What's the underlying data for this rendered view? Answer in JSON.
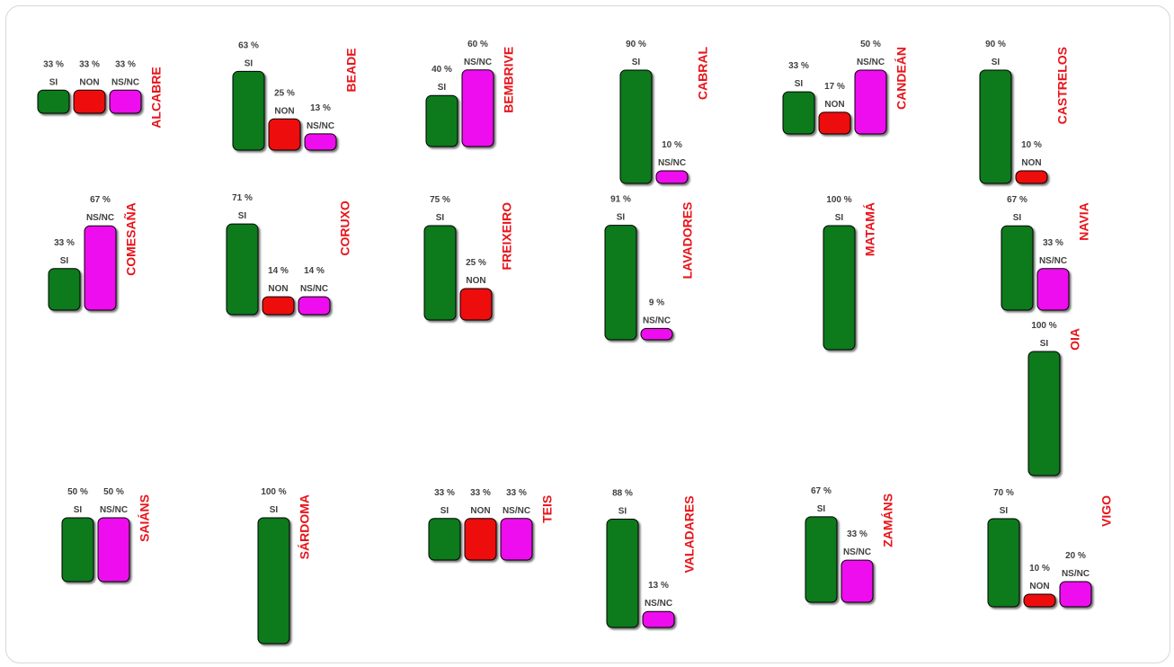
{
  "chart_data": {
    "type": "bar",
    "title": "",
    "colors": {
      "SI": "#0a7a1e",
      "NON": "#ee0b0b",
      "NS/NC": "#ee11ee"
    },
    "panels": [
      {
        "name": "ALCABRE",
        "bars": [
          {
            "cat": "SI",
            "value": 33,
            "label": "33 %"
          },
          {
            "cat": "NON",
            "value": 33,
            "label": "33 %"
          },
          {
            "cat": "NS/NC",
            "value": 33,
            "label": "33 %"
          }
        ]
      },
      {
        "name": "BEADE",
        "bars": [
          {
            "cat": "SI",
            "value": 63,
            "label": "63 %"
          },
          {
            "cat": "NON",
            "value": 25,
            "label": "25 %"
          },
          {
            "cat": "NS/NC",
            "value": 13,
            "label": "13 %"
          }
        ]
      },
      {
        "name": "BEMBRIVE",
        "bars": [
          {
            "cat": "SI",
            "value": 40,
            "label": "40 %"
          },
          {
            "cat": "NS/NC",
            "value": 60,
            "label": "60 %"
          }
        ]
      },
      {
        "name": "CABRAL",
        "bars": [
          {
            "cat": "SI",
            "value": 90,
            "label": "90 %"
          },
          {
            "cat": "NS/NC",
            "value": 10,
            "label": "10 %"
          }
        ]
      },
      {
        "name": "CANDEÁN",
        "bars": [
          {
            "cat": "SI",
            "value": 33,
            "label": "33 %"
          },
          {
            "cat": "NON",
            "value": 17,
            "label": "17 %"
          },
          {
            "cat": "NS/NC",
            "value": 50,
            "label": "50 %"
          }
        ]
      },
      {
        "name": "CASTRELOS",
        "bars": [
          {
            "cat": "SI",
            "value": 90,
            "label": "90 %"
          },
          {
            "cat": "NON",
            "value": 10,
            "label": "10 %"
          }
        ]
      },
      {
        "name": "COMESAÑA",
        "bars": [
          {
            "cat": "SI",
            "value": 33,
            "label": "33 %"
          },
          {
            "cat": "NS/NC",
            "value": 67,
            "label": "67 %"
          }
        ]
      },
      {
        "name": "CORUXO",
        "bars": [
          {
            "cat": "SI",
            "value": 71,
            "label": "71 %"
          },
          {
            "cat": "NON",
            "value": 14,
            "label": "14 %"
          },
          {
            "cat": "NS/NC",
            "value": 14,
            "label": "14 %"
          }
        ]
      },
      {
        "name": "FREIXEIRO",
        "bars": [
          {
            "cat": "SI",
            "value": 75,
            "label": "75 %"
          },
          {
            "cat": "NON",
            "value": 25,
            "label": "25 %"
          }
        ]
      },
      {
        "name": "LAVADORES",
        "bars": [
          {
            "cat": "SI",
            "value": 91,
            "label": "91 %"
          },
          {
            "cat": "NS/NC",
            "value": 9,
            "label": "9 %"
          }
        ]
      },
      {
        "name": "MATAMÁ",
        "bars": [
          {
            "cat": "SI",
            "value": 100,
            "label": "100 %"
          }
        ]
      },
      {
        "name": "NAVIA",
        "bars": [
          {
            "cat": "SI",
            "value": 67,
            "label": "67 %"
          },
          {
            "cat": "NS/NC",
            "value": 33,
            "label": "33 %"
          }
        ]
      },
      {
        "name": "OIA",
        "bars": [
          {
            "cat": "SI",
            "value": 100,
            "label": "100 %"
          }
        ]
      },
      {
        "name": "SAIÁNS",
        "bars": [
          {
            "cat": "SI",
            "value": 50,
            "label": "50 %"
          },
          {
            "cat": "NS/NC",
            "value": 50,
            "label": "50 %"
          }
        ]
      },
      {
        "name": "SÁRDOMA",
        "bars": [
          {
            "cat": "SI",
            "value": 100,
            "label": "100 %"
          }
        ]
      },
      {
        "name": "TEIS",
        "bars": [
          {
            "cat": "SI",
            "value": 33,
            "label": "33 %"
          },
          {
            "cat": "NON",
            "value": 33,
            "label": "33 %"
          },
          {
            "cat": "NS/NC",
            "value": 33,
            "label": "33 %"
          }
        ]
      },
      {
        "name": "VALADARES",
        "bars": [
          {
            "cat": "SI",
            "value": 88,
            "label": "88 %"
          },
          {
            "cat": "NS/NC",
            "value": 13,
            "label": "13 %"
          }
        ]
      },
      {
        "name": "ZAMÁNS",
        "bars": [
          {
            "cat": "SI",
            "value": 67,
            "label": "67 %"
          },
          {
            "cat": "NS/NC",
            "value": 33,
            "label": "33 %"
          }
        ]
      },
      {
        "name": "VIGO",
        "bars": [
          {
            "cat": "SI",
            "value": 70,
            "label": "70 %"
          },
          {
            "cat": "NON",
            "value": 10,
            "label": "10 %"
          },
          {
            "cat": "NS/NC",
            "value": 20,
            "label": "20 %"
          }
        ]
      }
    ]
  }
}
